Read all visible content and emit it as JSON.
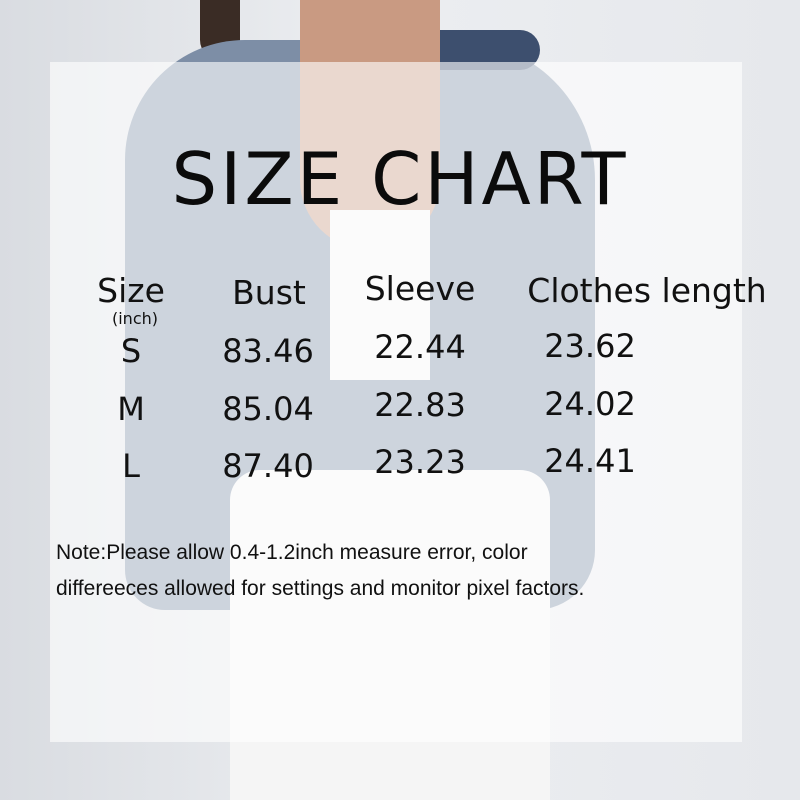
{
  "title": "SIZE CHART",
  "unit": "(inch)",
  "headers": [
    "Size",
    "Bust",
    "Sleeve",
    "Clothes length"
  ],
  "rows": [
    {
      "size": "S",
      "bust": "83.46",
      "sleeve": "22.44",
      "length": "23.62"
    },
    {
      "size": "M",
      "bust": "85.04",
      "sleeve": "22.83",
      "length": "24.02"
    },
    {
      "size": "L",
      "bust": "87.40",
      "sleeve": "23.23",
      "length": "24.41"
    }
  ],
  "note_line1": "Note:Please allow 0.4-1.2inch measure error, color",
  "note_line2": "differeeces allowed for settings and monitor pixel factors.",
  "colors": {
    "cardigan": "#7d8ea6",
    "panel": "#ffffff",
    "text": "#111111"
  }
}
